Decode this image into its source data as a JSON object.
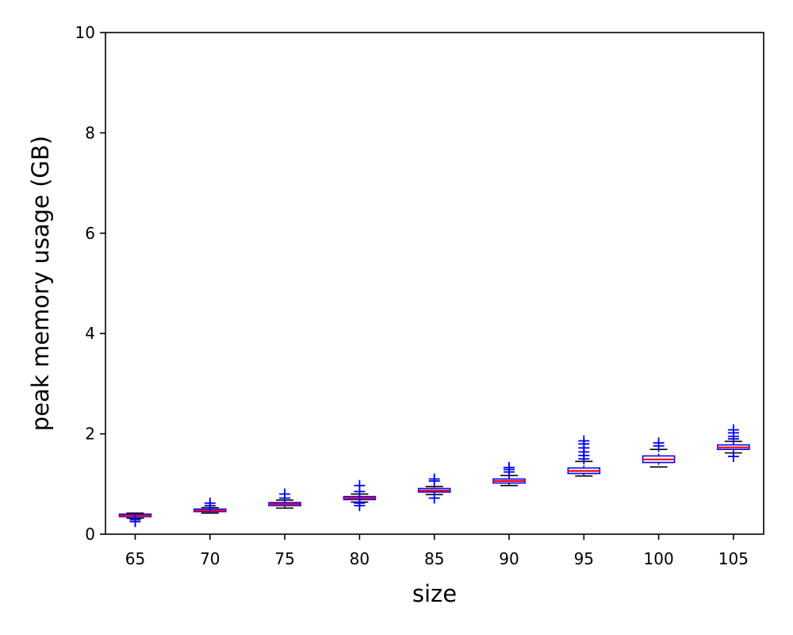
{
  "chart_data": {
    "type": "box",
    "title": "",
    "xlabel": "size",
    "ylabel": "peak memory usage (GB)",
    "ylim": [
      0,
      10
    ],
    "yticks": [
      0,
      2,
      4,
      6,
      8,
      10
    ],
    "categories": [
      "65",
      "70",
      "75",
      "80",
      "85",
      "90",
      "95",
      "100",
      "105"
    ],
    "boxes": [
      {
        "whisker_low": 0.32,
        "q1": 0.35,
        "median": 0.37,
        "q3": 0.4,
        "whisker_high": 0.42,
        "outliers": [
          0.25,
          0.29
        ]
      },
      {
        "whisker_low": 0.42,
        "q1": 0.45,
        "median": 0.47,
        "q3": 0.5,
        "whisker_high": 0.53,
        "outliers": [
          0.57,
          0.62
        ]
      },
      {
        "whisker_low": 0.52,
        "q1": 0.57,
        "median": 0.6,
        "q3": 0.63,
        "whisker_high": 0.68,
        "outliers": [
          0.72,
          0.8
        ]
      },
      {
        "whisker_low": 0.64,
        "q1": 0.69,
        "median": 0.72,
        "q3": 0.75,
        "whisker_high": 0.8,
        "outliers": [
          0.57,
          0.62,
          0.85,
          0.97
        ]
      },
      {
        "whisker_low": 0.79,
        "q1": 0.84,
        "median": 0.87,
        "q3": 0.91,
        "whisker_high": 0.95,
        "outliers": [
          0.72,
          1.06,
          1.1
        ]
      },
      {
        "whisker_low": 0.97,
        "q1": 1.02,
        "median": 1.06,
        "q3": 1.1,
        "whisker_high": 1.17,
        "outliers": [
          1.24,
          1.29,
          1.33
        ]
      },
      {
        "whisker_low": 1.16,
        "q1": 1.21,
        "median": 1.26,
        "q3": 1.32,
        "whisker_high": 1.45,
        "outliers": [
          1.5,
          1.57,
          1.64,
          1.72,
          1.8,
          1.86
        ]
      },
      {
        "whisker_low": 1.34,
        "q1": 1.43,
        "median": 1.49,
        "q3": 1.56,
        "whisker_high": 1.69,
        "outliers": [
          1.76,
          1.82
        ]
      },
      {
        "whisker_low": 1.62,
        "q1": 1.69,
        "median": 1.73,
        "q3": 1.78,
        "whisker_high": 1.85,
        "outliers": [
          1.55,
          1.9,
          1.95,
          2.02,
          2.08
        ]
      }
    ],
    "colors": {
      "box": "#0000ff",
      "median": "#ff0000",
      "whisker": "#000000",
      "outlier": "#0000ff",
      "axes": "#000000"
    },
    "grid": false,
    "legend": "none"
  }
}
